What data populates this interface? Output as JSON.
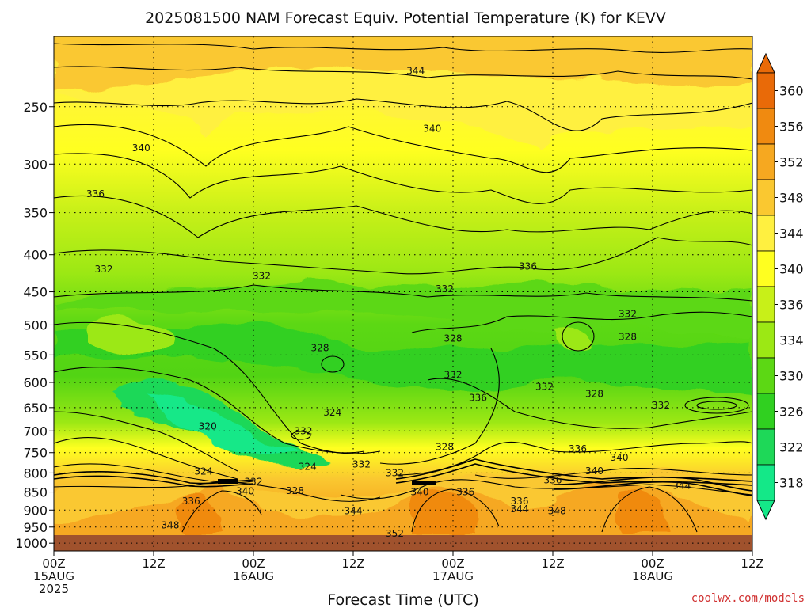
{
  "chart_data": {
    "type": "heatmap",
    "subtype": "time-height contour",
    "title": "2025081500 NAM Forecast Equiv. Potential Temperature (K) for KEVV",
    "xlabel": "Forecast Time (UTC)",
    "credit": "coolwx.com/models",
    "x_ticks": [
      {
        "hours": 0,
        "line1": "00Z",
        "line2": "15AUG",
        "line3": "2025"
      },
      {
        "hours": 12,
        "line1": "12Z",
        "line2": "",
        "line3": ""
      },
      {
        "hours": 24,
        "line1": "00Z",
        "line2": "16AUG",
        "line3": ""
      },
      {
        "hours": 36,
        "line1": "12Z",
        "line2": "",
        "line3": ""
      },
      {
        "hours": 48,
        "line1": "00Z",
        "line2": "17AUG",
        "line3": ""
      },
      {
        "hours": 60,
        "line1": "12Z",
        "line2": "",
        "line3": ""
      },
      {
        "hours": 72,
        "line1": "00Z",
        "line2": "18AUG",
        "line3": ""
      },
      {
        "hours": 84,
        "line1": "12Z",
        "line2": "",
        "line3": ""
      }
    ],
    "xlim_hours": [
      0,
      84
    ],
    "y_ticks": [
      250,
      300,
      350,
      400,
      450,
      500,
      550,
      600,
      650,
      700,
      750,
      800,
      850,
      900,
      950,
      1000
    ],
    "y_ticks_label": [
      "250",
      "300",
      "350",
      "400",
      "450",
      "500",
      "550",
      "600",
      "650",
      "700",
      "750",
      "800",
      "850",
      "900",
      "950",
      "1000"
    ],
    "ylim_hPa": [
      200,
      1025
    ],
    "y_scale": "log",
    "grid": "dotted",
    "colorbar": {
      "ticks": [
        "360",
        "356",
        "352",
        "348",
        "344",
        "340",
        "336",
        "334",
        "330",
        "326",
        "322",
        "318"
      ],
      "colors": [
        "#e96a08",
        "#f08a10",
        "#f6a820",
        "#fac830",
        "#fff040",
        "#ffff20",
        "#c8f018",
        "#9ce814",
        "#5cd814",
        "#30d020",
        "#1ed858",
        "#14e888"
      ]
    },
    "surface_color": "#a0522d",
    "contour_labels": [
      {
        "value": "344",
        "h": 43.5,
        "p": 223
      },
      {
        "value": "340",
        "h": 10.5,
        "p": 285
      },
      {
        "value": "340",
        "h": 45.5,
        "p": 268
      },
      {
        "value": "336",
        "h": 5,
        "p": 330
      },
      {
        "value": "332",
        "h": 6,
        "p": 419
      },
      {
        "value": "332",
        "h": 25,
        "p": 428
      },
      {
        "value": "332",
        "h": 47,
        "p": 446
      },
      {
        "value": "336",
        "h": 57,
        "p": 415
      },
      {
        "value": "332",
        "h": 69,
        "p": 483
      },
      {
        "value": "328",
        "h": 32,
        "p": 538
      },
      {
        "value": "328",
        "h": 48,
        "p": 522
      },
      {
        "value": "328",
        "h": 69,
        "p": 519
      },
      {
        "value": "332",
        "h": 48,
        "p": 586
      },
      {
        "value": "336",
        "h": 51,
        "p": 630
      },
      {
        "value": "332",
        "h": 59,
        "p": 608
      },
      {
        "value": "328",
        "h": 65,
        "p": 622
      },
      {
        "value": "332",
        "h": 73,
        "p": 645
      },
      {
        "value": "324",
        "h": 33.5,
        "p": 660
      },
      {
        "value": "320",
        "h": 18.5,
        "p": 690
      },
      {
        "value": "332",
        "h": 30,
        "p": 700
      },
      {
        "value": "328",
        "h": 47,
        "p": 736
      },
      {
        "value": "336",
        "h": 63,
        "p": 741
      },
      {
        "value": "340",
        "h": 68,
        "p": 762
      },
      {
        "value": "324",
        "h": 30.5,
        "p": 784
      },
      {
        "value": "332",
        "h": 37,
        "p": 778
      },
      {
        "value": "324",
        "h": 18,
        "p": 796
      },
      {
        "value": "332",
        "h": 41,
        "p": 800
      },
      {
        "value": "340",
        "h": 65,
        "p": 795
      },
      {
        "value": "332",
        "h": 24,
        "p": 823
      },
      {
        "value": "336",
        "h": 60,
        "p": 818
      },
      {
        "value": "344",
        "h": 75.5,
        "p": 833
      },
      {
        "value": "340",
        "h": 23,
        "p": 848
      },
      {
        "value": "328",
        "h": 29,
        "p": 847
      },
      {
        "value": "340",
        "h": 44,
        "p": 850
      },
      {
        "value": "336",
        "h": 49.5,
        "p": 850
      },
      {
        "value": "336",
        "h": 16.5,
        "p": 875
      },
      {
        "value": "336",
        "h": 56,
        "p": 875
      },
      {
        "value": "344",
        "h": 36,
        "p": 903
      },
      {
        "value": "344",
        "h": 56,
        "p": 897
      },
      {
        "value": "348",
        "h": 60.5,
        "p": 903
      },
      {
        "value": "348",
        "h": 14,
        "p": 945
      },
      {
        "value": "352",
        "h": 41,
        "p": 970
      }
    ]
  }
}
